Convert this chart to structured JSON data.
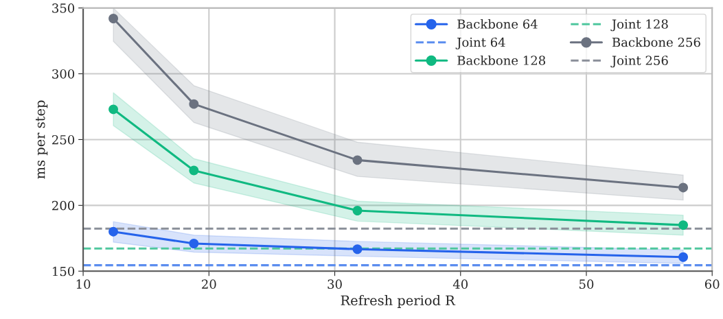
{
  "chart_data": {
    "type": "line",
    "xlabel": "Refresh period R",
    "ylabel": "ms per step",
    "x": [
      12.4,
      18.8,
      31.8,
      57.7
    ],
    "series": [
      {
        "name": "Backbone 64",
        "color": "#2563eb",
        "values": [
          180,
          171,
          166.7,
          160.7
        ],
        "lower": [
          172,
          164.5,
          161.3,
          155.9
        ],
        "upper": [
          187.6,
          177.4,
          172.6,
          166.1
        ]
      },
      {
        "name": "Backbone 128",
        "color": "#10b981",
        "values": [
          273,
          226.5,
          196,
          185
        ],
        "lower": [
          260.6,
          217,
          188,
          177.4
        ],
        "upper": [
          285.6,
          235.5,
          203.2,
          192.5
        ]
      },
      {
        "name": "Backbone 256",
        "color": "#6b7280",
        "values": [
          342,
          277,
          234.4,
          213.5
        ],
        "lower": [
          324.7,
          263,
          222,
          204
        ],
        "upper": [
          350,
          291,
          248,
          223
        ]
      }
    ],
    "ref_lines": [
      {
        "axis": "y",
        "value": 154.5,
        "label": "Joint 64",
        "color": "#5b8def",
        "line_style": "dashed"
      },
      {
        "axis": "y",
        "value": 167.2,
        "label": "Joint 128",
        "color": "#4fc79e",
        "line_style": "dashed"
      },
      {
        "axis": "y",
        "value": 182.3,
        "label": "Joint 256",
        "color": "#8a8f99",
        "line_style": "dashed"
      }
    ],
    "xlim": [
      10,
      60
    ],
    "xticks": [
      10,
      20,
      30,
      40,
      50,
      60
    ],
    "ylim": [
      150,
      350
    ],
    "yticks": [
      150,
      200,
      250,
      300,
      350
    ],
    "grid": true,
    "legend": "top right",
    "marker": "circle",
    "line_style": "solid"
  }
}
